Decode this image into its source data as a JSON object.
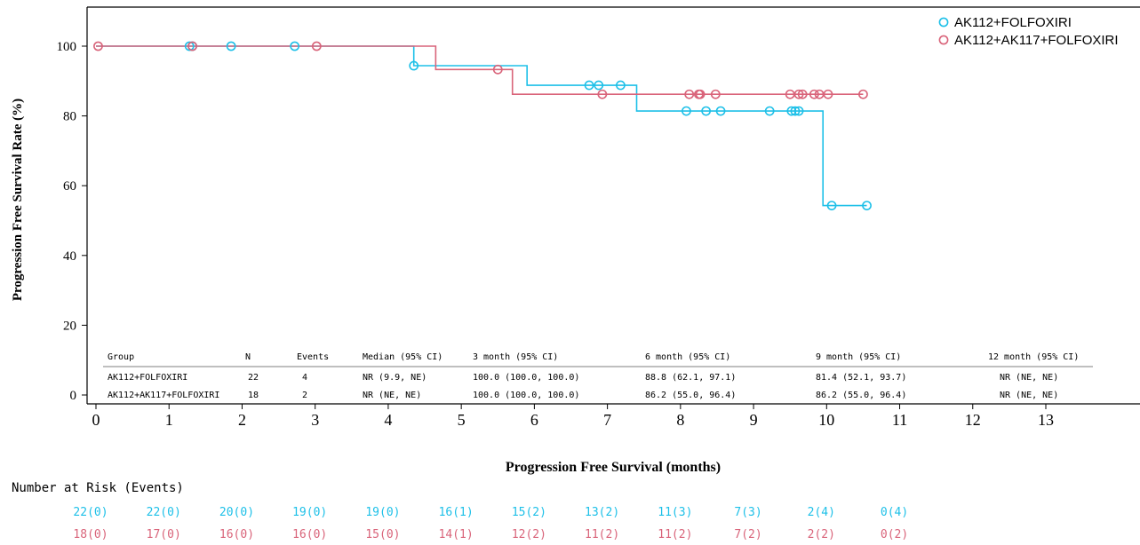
{
  "chart_data": {
    "type": "line",
    "subtype": "kaplan-meier",
    "title": "",
    "xlabel": "Progression Free Survival (months)",
    "ylabel": "Progression Free Survival Rate (%)",
    "xlim": [
      -0.2,
      14.2
    ],
    "ylim": [
      0,
      110
    ],
    "x_ticks": [
      0,
      1,
      2,
      3,
      4,
      5,
      6,
      7,
      8,
      9,
      10,
      11,
      12,
      13
    ],
    "y_ticks": [
      0,
      20,
      40,
      60,
      80,
      100
    ],
    "x_tick_labels": [
      "0",
      "1",
      "2",
      "3",
      "4",
      "5",
      "6",
      "7",
      "8",
      "9",
      "10",
      "11",
      "12",
      "13"
    ],
    "y_tick_labels": [
      "0",
      "20",
      "40",
      "60",
      "80",
      "100"
    ],
    "grid": false,
    "legend_position": "top-right",
    "series": [
      {
        "name": "AK112+FOLFOXIRI",
        "color": "#1ec0e8",
        "steps": [
          [
            0,
            100
          ],
          [
            4.35,
            94.4
          ],
          [
            5.9,
            88.8
          ],
          [
            7.4,
            81.4
          ],
          [
            9.95,
            54.3
          ],
          [
            10.55,
            54.3
          ]
        ],
        "censored": [
          [
            1.28,
            100
          ],
          [
            1.32,
            100
          ],
          [
            1.85,
            100
          ],
          [
            2.72,
            100
          ],
          [
            4.35,
            94.4
          ],
          [
            6.75,
            88.8
          ],
          [
            6.88,
            88.8
          ],
          [
            7.18,
            88.8
          ],
          [
            8.08,
            81.4
          ],
          [
            8.35,
            81.4
          ],
          [
            8.55,
            81.4
          ],
          [
            9.22,
            81.4
          ],
          [
            9.52,
            81.4
          ],
          [
            9.57,
            81.4
          ],
          [
            9.62,
            81.4
          ],
          [
            10.07,
            54.3
          ],
          [
            10.55,
            54.3
          ]
        ]
      },
      {
        "name": "AK112+AK117+FOLFOXIRI",
        "color": "#d9647a",
        "steps": [
          [
            0,
            100
          ],
          [
            4.65,
            93.3
          ],
          [
            5.7,
            86.2
          ],
          [
            10.5,
            86.2
          ]
        ],
        "censored": [
          [
            0.03,
            100
          ],
          [
            1.32,
            100
          ],
          [
            3.02,
            100
          ],
          [
            5.5,
            93.3
          ],
          [
            6.93,
            86.2
          ],
          [
            8.12,
            86.2
          ],
          [
            8.25,
            86.2
          ],
          [
            8.27,
            86.2
          ],
          [
            8.48,
            86.2
          ],
          [
            9.5,
            86.2
          ],
          [
            9.62,
            86.2
          ],
          [
            9.67,
            86.2
          ],
          [
            9.83,
            86.2
          ],
          [
            9.9,
            86.2
          ],
          [
            10.02,
            86.2
          ],
          [
            10.5,
            86.2
          ]
        ]
      }
    ]
  },
  "stats_table": {
    "headers": [
      "Group",
      "N",
      "Events",
      "Median (95% CI)",
      "3 month (95% CI)",
      "6 month (95% CI)",
      "9 month (95% CI)",
      "12 month (95% CI)"
    ],
    "rows": [
      [
        "AK112+FOLFOXIRI",
        "22",
        "4",
        "NR (9.9, NE)",
        "100.0 (100.0, 100.0)",
        "88.8 (62.1, 97.1)",
        "81.4 (52.1, 93.7)",
        "NR (NE, NE)"
      ],
      [
        "AK112+AK117+FOLFOXIRI",
        "18",
        "2",
        "NR (NE, NE)",
        "100.0 (100.0, 100.0)",
        "86.2 (55.0, 96.4)",
        "86.2 (55.0, 96.4)",
        "NR (NE, NE)"
      ]
    ]
  },
  "risk_table": {
    "title": "Number at Risk (Events)",
    "rows": [
      {
        "color": "#1ec0e8",
        "values": [
          "22(0)",
          "22(0)",
          "20(0)",
          "19(0)",
          "19(0)",
          "16(1)",
          "15(2)",
          "13(2)",
          "11(3)",
          "7(3)",
          "2(4)",
          "0(4)"
        ]
      },
      {
        "color": "#d9647a",
        "values": [
          "18(0)",
          "17(0)",
          "16(0)",
          "16(0)",
          "15(0)",
          "14(1)",
          "12(2)",
          "11(2)",
          "11(2)",
          "7(2)",
          "2(2)",
          "0(2)"
        ]
      }
    ]
  }
}
